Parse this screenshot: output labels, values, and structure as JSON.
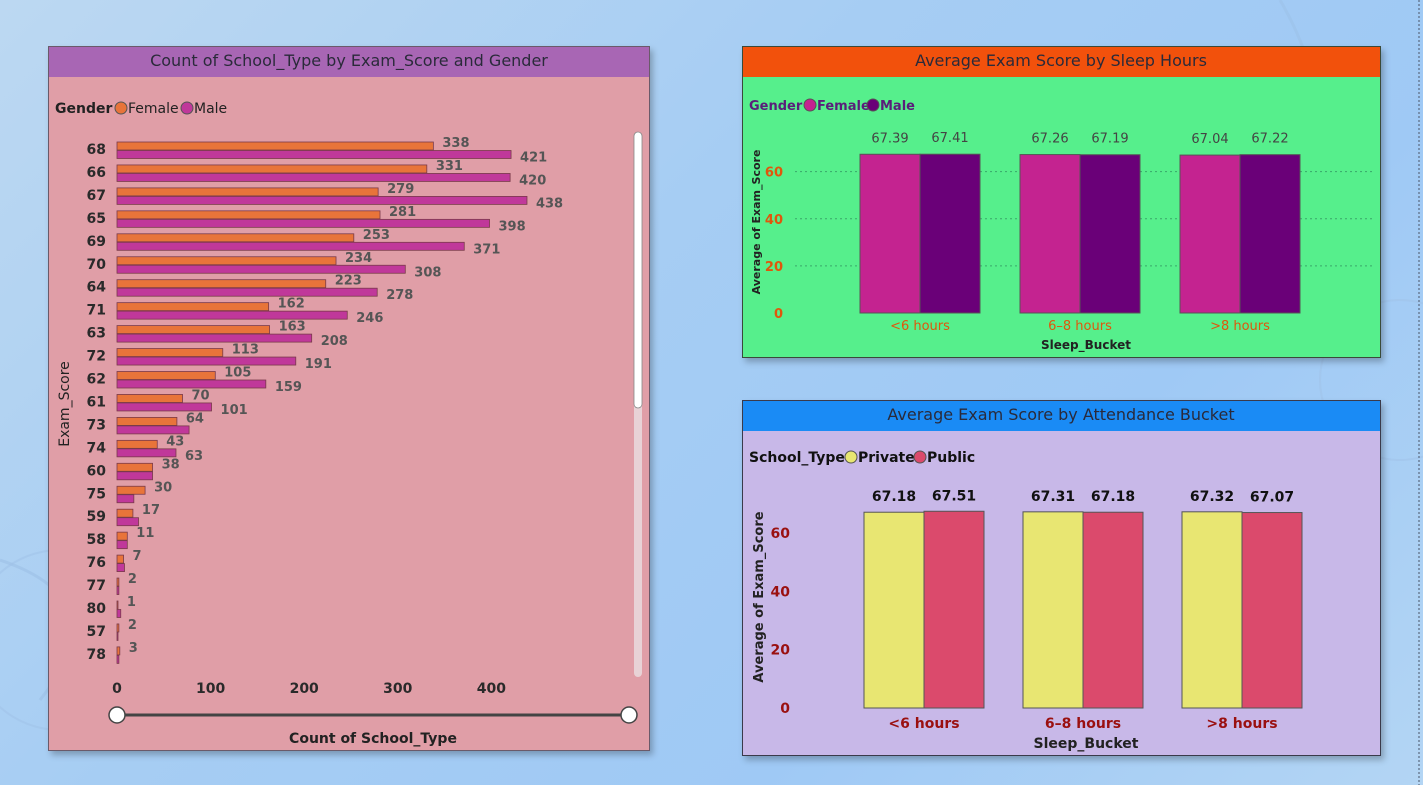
{
  "colors": {
    "female_orange": "#e8743a",
    "male_magenta": "#c0389a",
    "sleep_female": "#c42390",
    "sleep_male": "#6a0078",
    "private_yellow": "#e8e672",
    "public_red": "#db4a6c"
  },
  "chart_data": [
    {
      "type": "bar",
      "orientation": "horizontal",
      "title": "Count of School_Type by Exam_Score and Gender",
      "xlabel": "Count of School_Type",
      "ylabel": "Exam_Score",
      "legend_title": "Gender",
      "legend_position": "top-left",
      "categories": [
        "68",
        "66",
        "67",
        "65",
        "69",
        "70",
        "64",
        "71",
        "63",
        "72",
        "62",
        "61",
        "73",
        "74",
        "60",
        "75",
        "59",
        "58",
        "76",
        "77",
        "80",
        "57",
        "78"
      ],
      "series": [
        {
          "name": "Female",
          "values": [
            338,
            331,
            279,
            281,
            253,
            234,
            223,
            162,
            163,
            113,
            105,
            70,
            64,
            43,
            38,
            30,
            17,
            11,
            7,
            2,
            1,
            2,
            3
          ]
        },
        {
          "name": "Male",
          "values": [
            421,
            420,
            438,
            398,
            371,
            308,
            278,
            246,
            208,
            191,
            159,
            101,
            77,
            63,
            38,
            18,
            23,
            11,
            8,
            2,
            4,
            1,
            2
          ]
        }
      ],
      "labels": [
        [
          "338",
          "421"
        ],
        [
          "331",
          "420"
        ],
        [
          "279",
          "438"
        ],
        [
          "281",
          "398"
        ],
        [
          "253",
          "371"
        ],
        [
          "234",
          "308"
        ],
        [
          "223",
          "278"
        ],
        [
          "162",
          "246"
        ],
        [
          "163",
          "208"
        ],
        [
          "113",
          "191"
        ],
        [
          "105",
          "159"
        ],
        [
          "70",
          "101"
        ],
        [
          "64",
          ""
        ],
        [
          "43",
          "63"
        ],
        [
          "38",
          ""
        ],
        [
          "30",
          ""
        ],
        [
          "17",
          ""
        ],
        [
          "11",
          ""
        ],
        [
          "7",
          ""
        ],
        [
          "2",
          ""
        ],
        [
          "1",
          ""
        ],
        [
          "2",
          ""
        ],
        [
          "3",
          ""
        ]
      ],
      "xticks": [
        "0",
        "100",
        "200",
        "300",
        "400"
      ],
      "xlim": [
        0,
        480
      ]
    },
    {
      "type": "bar",
      "title": "Average Exam Score by Sleep Hours",
      "xlabel": "Sleep_Bucket",
      "ylabel": "Average of Exam_Score",
      "legend_title": "Gender",
      "legend_position": "top-left",
      "categories": [
        "<6 hours",
        "6–8 hours",
        ">8 hours"
      ],
      "series": [
        {
          "name": "Female",
          "values": [
            67.39,
            67.26,
            67.04
          ]
        },
        {
          "name": "Male",
          "values": [
            67.41,
            67.19,
            67.22
          ]
        }
      ],
      "labels": [
        [
          "67.39",
          "67.41"
        ],
        [
          "67.26",
          "67.19"
        ],
        [
          "67.04",
          "67.22"
        ]
      ],
      "yticks": [
        "0",
        "20",
        "40",
        "60"
      ],
      "ylim": [
        0,
        67.5
      ],
      "grid": true
    },
    {
      "type": "bar",
      "title": "Average Exam Score by Attendance Bucket",
      "xlabel": "Sleep_Bucket",
      "ylabel": "Average of Exam_Score",
      "legend_title": "School_Type",
      "legend_position": "top-left",
      "categories": [
        "<6 hours",
        "6–8 hours",
        ">8 hours"
      ],
      "series": [
        {
          "name": "Private",
          "values": [
            67.18,
            67.31,
            67.32
          ]
        },
        {
          "name": "Public",
          "values": [
            67.51,
            67.18,
            67.07
          ]
        }
      ],
      "labels": [
        [
          "67.18",
          "67.51"
        ],
        [
          "67.31",
          "67.18"
        ],
        [
          "67.32",
          "67.07"
        ]
      ],
      "yticks": [
        "0",
        "20",
        "40",
        "60"
      ],
      "ylim": [
        0,
        67.6
      ],
      "grid": false
    }
  ]
}
